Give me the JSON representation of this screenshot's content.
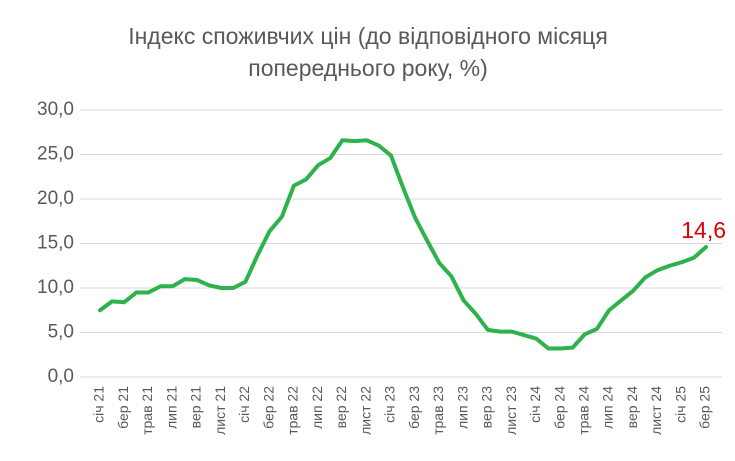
{
  "chart_data": {
    "type": "line",
    "title": [
      "Індекс споживчих цін (до відповідного місяця",
      "попереднього року, %)"
    ],
    "categories": [
      "січ 21",
      null,
      "бер 21",
      null,
      "трав 21",
      null,
      "лип 21",
      null,
      "вер 21",
      null,
      "лист 21",
      null,
      "січ 22",
      null,
      "бер 22",
      null,
      "трав 22",
      null,
      "лип 22",
      null,
      "вер 22",
      null,
      "лист 22",
      null,
      "січ 23",
      null,
      "бер 23",
      null,
      "трав 23",
      null,
      "лип 23",
      null,
      "вер 23",
      null,
      "лист 23",
      null,
      "січ 24",
      null,
      "бер 24",
      null,
      "трав 24",
      null,
      "лип 24",
      null,
      "вер 24",
      null,
      "лист 24",
      null,
      "січ 25",
      null,
      "бер 25"
    ],
    "series": [
      {
        "name": "Індекс споживчих цін",
        "color": "#2eb24b",
        "values": [
          7.5,
          8.5,
          8.4,
          9.5,
          9.5,
          10.2,
          10.2,
          11.0,
          10.9,
          10.3,
          10.0,
          10.0,
          10.7,
          13.7,
          16.4,
          18.0,
          21.5,
          22.2,
          23.8,
          24.6,
          26.6,
          26.5,
          26.6,
          26.0,
          24.9,
          21.3,
          17.9,
          15.3,
          12.8,
          11.3,
          8.6,
          7.1,
          5.3,
          5.1,
          5.1,
          4.7,
          4.3,
          3.2,
          3.2,
          3.3,
          4.8,
          5.4,
          7.5,
          8.6,
          9.7,
          11.2,
          12.0,
          12.5,
          12.9,
          13.4,
          14.6
        ],
        "value_labels": [
          null,
          null,
          null,
          null,
          null,
          null,
          null,
          null,
          null,
          null,
          null,
          null,
          null,
          null,
          null,
          null,
          null,
          null,
          null,
          null,
          null,
          null,
          null,
          null,
          null,
          null,
          null,
          null,
          null,
          null,
          null,
          null,
          null,
          null,
          null,
          null,
          null,
          null,
          null,
          null,
          null,
          null,
          null,
          null,
          null,
          null,
          null,
          null,
          null,
          null,
          "14,6"
        ],
        "label_color": "#e00000"
      }
    ],
    "ylim": [
      0,
      30
    ],
    "yticks": [
      {
        "value": 0,
        "label": "0,0"
      },
      {
        "value": 5,
        "label": "5,0"
      },
      {
        "value": 10,
        "label": "10,0"
      },
      {
        "value": 15,
        "label": "15,0"
      },
      {
        "value": 20,
        "label": "20,0"
      },
      {
        "value": 25,
        "label": "25,0"
      },
      {
        "value": 30,
        "label": "30,0"
      }
    ],
    "grid": true
  }
}
